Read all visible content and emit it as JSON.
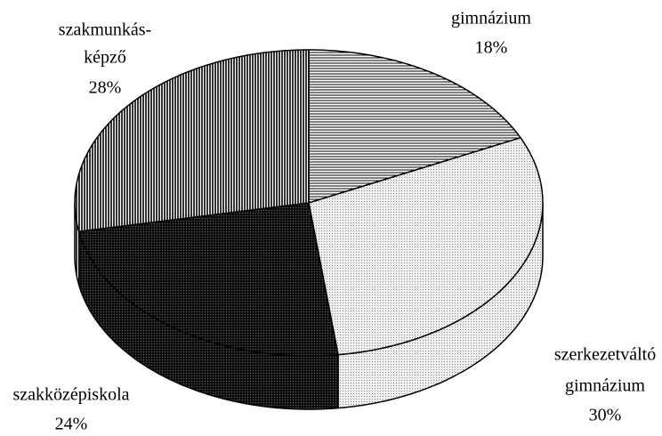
{
  "chart_data": {
    "type": "pie3d",
    "categories": [
      [
        "gimnázium"
      ],
      [
        "szerkezetváltó",
        "gimnázium"
      ],
      [
        "szakközépiskola"
      ],
      [
        "szakmunkás-",
        "képző"
      ]
    ],
    "values": [
      18,
      30,
      24,
      28
    ],
    "value_labels": [
      "18%",
      "30%",
      "24%",
      "28%"
    ],
    "colors": [
      "#ffffff",
      "#eeeeee",
      "#555555",
      "#ffffff"
    ]
  }
}
